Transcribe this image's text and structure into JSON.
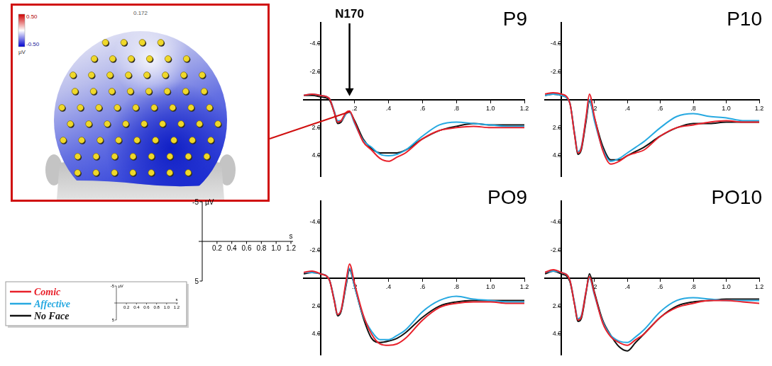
{
  "chart_data": [
    {
      "type": "line",
      "title": "P9",
      "x": [
        -0.1,
        -0.05,
        0,
        0.05,
        0.08,
        0.1,
        0.12,
        0.15,
        0.17,
        0.2,
        0.25,
        0.3,
        0.35,
        0.4,
        0.45,
        0.5,
        0.6,
        0.7,
        0.8,
        0.9,
        1.0,
        1.1,
        1.2
      ],
      "series": [
        {
          "name": "Comic",
          "color": "#e8202a",
          "values": [
            -0.3,
            -0.4,
            -0.3,
            -0.1,
            0.9,
            1.6,
            1.5,
            0.9,
            0.8,
            1.6,
            3.0,
            3.6,
            4.2,
            4.4,
            4.1,
            3.8,
            2.8,
            2.2,
            2.0,
            1.9,
            2.0,
            2.0,
            2.0
          ]
        },
        {
          "name": "Affective",
          "color": "#27a9e1",
          "values": [
            -0.3,
            -0.4,
            -0.3,
            -0.1,
            0.8,
            1.5,
            1.5,
            1.0,
            0.9,
            1.7,
            2.9,
            3.4,
            3.9,
            4.0,
            3.9,
            3.6,
            2.6,
            1.8,
            1.6,
            1.7,
            1.8,
            1.9,
            1.9
          ]
        },
        {
          "name": "No Face",
          "color": "#111111",
          "values": [
            -0.3,
            -0.3,
            -0.2,
            0.0,
            0.9,
            1.7,
            1.6,
            1.0,
            0.9,
            1.5,
            2.8,
            3.5,
            3.8,
            3.8,
            3.8,
            3.6,
            2.8,
            2.2,
            1.9,
            1.7,
            1.8,
            1.8,
            1.8
          ]
        }
      ],
      "xlim": [
        -0.1,
        1.2
      ],
      "xticks": [
        {
          "value": 0.2,
          "label": ".2"
        },
        {
          "value": 0.4,
          "label": ".4"
        },
        {
          "value": 0.6,
          "label": ".6"
        },
        {
          "value": 0.8,
          "label": ".8"
        },
        {
          "value": 1,
          "label": "1.0"
        },
        1.2
      ],
      "ylim": [
        5.5,
        -5.5
      ],
      "yticks": [
        {
          "value": -4,
          "label": "-4.0"
        },
        {
          "value": -2,
          "label": "-2.0"
        },
        {
          "value": 2,
          "label": "2.0"
        },
        {
          "value": 4,
          "label": "4.0"
        }
      ],
      "grid": false,
      "legend": "lower left",
      "annotations": [
        {
          "text": "N170",
          "x": 0.17
        }
      ]
    },
    {
      "type": "line",
      "title": "P10",
      "x": [
        -0.1,
        -0.05,
        0,
        0.05,
        0.08,
        0.1,
        0.12,
        0.15,
        0.17,
        0.2,
        0.25,
        0.3,
        0.35,
        0.4,
        0.45,
        0.5,
        0.6,
        0.7,
        0.8,
        0.9,
        1.0,
        1.1,
        1.2
      ],
      "series": [
        {
          "name": "Comic",
          "color": "#e8202a",
          "values": [
            -0.4,
            -0.5,
            -0.4,
            0.2,
            2.5,
            3.8,
            3.5,
            1.2,
            -0.4,
            1.2,
            3.6,
            4.6,
            4.4,
            4.0,
            3.8,
            3.6,
            2.6,
            2.0,
            1.8,
            1.6,
            1.5,
            1.6,
            1.6
          ]
        },
        {
          "name": "Affective",
          "color": "#27a9e1",
          "values": [
            -0.3,
            -0.4,
            -0.3,
            0.2,
            2.4,
            3.7,
            3.4,
            1.3,
            0.0,
            1.5,
            3.5,
            4.4,
            4.2,
            3.8,
            3.4,
            3.0,
            2.0,
            1.2,
            1.0,
            1.2,
            1.3,
            1.5,
            1.5
          ]
        },
        {
          "name": "No Face",
          "color": "#111111",
          "values": [
            -0.3,
            -0.4,
            -0.3,
            0.2,
            2.5,
            3.9,
            3.6,
            1.5,
            0.1,
            1.3,
            3.3,
            4.3,
            4.3,
            4.0,
            3.7,
            3.4,
            2.6,
            2.0,
            1.7,
            1.7,
            1.6,
            1.6,
            1.6
          ]
        }
      ],
      "xlim": [
        -0.1,
        1.2
      ],
      "xticks": [
        {
          "value": 0.2,
          "label": ".2"
        },
        {
          "value": 0.4,
          "label": ".4"
        },
        {
          "value": 0.6,
          "label": ".6"
        },
        {
          "value": 0.8,
          "label": ".8"
        },
        {
          "value": 1,
          "label": "1.0"
        },
        1.2
      ],
      "ylim": [
        5.5,
        -5.5
      ],
      "yticks": [
        {
          "value": -4,
          "label": "-4.0"
        },
        {
          "value": -2,
          "label": "-2.0"
        },
        {
          "value": 2,
          "label": "2.0"
        },
        {
          "value": 4,
          "label": "4.0"
        }
      ],
      "grid": false,
      "legend": "lower left"
    },
    {
      "type": "line",
      "title": "PO9",
      "x": [
        -0.1,
        -0.05,
        0,
        0.05,
        0.08,
        0.1,
        0.12,
        0.15,
        0.17,
        0.2,
        0.25,
        0.3,
        0.35,
        0.4,
        0.45,
        0.5,
        0.6,
        0.7,
        0.8,
        0.9,
        1.0,
        1.1,
        1.2
      ],
      "series": [
        {
          "name": "Comic",
          "color": "#e8202a",
          "values": [
            -0.4,
            -0.5,
            -0.3,
            0.1,
            1.6,
            2.6,
            2.3,
            0.2,
            -1.0,
            0.4,
            2.6,
            4.0,
            4.7,
            4.8,
            4.7,
            4.3,
            3.0,
            2.1,
            1.8,
            1.7,
            1.7,
            1.8,
            1.8
          ]
        },
        {
          "name": "Affective",
          "color": "#27a9e1",
          "values": [
            -0.4,
            -0.4,
            -0.3,
            0.1,
            1.5,
            2.6,
            2.3,
            0.4,
            -0.7,
            0.6,
            2.7,
            3.8,
            4.4,
            4.4,
            4.1,
            3.7,
            2.4,
            1.6,
            1.3,
            1.5,
            1.6,
            1.7,
            1.7
          ]
        },
        {
          "name": "No Face",
          "color": "#111111",
          "values": [
            -0.3,
            -0.4,
            -0.3,
            0.1,
            1.6,
            2.7,
            2.4,
            0.5,
            -0.6,
            0.6,
            2.8,
            4.3,
            4.6,
            4.5,
            4.3,
            3.9,
            2.8,
            2.0,
            1.7,
            1.6,
            1.6,
            1.6,
            1.6
          ]
        }
      ],
      "xlim": [
        -0.1,
        1.2
      ],
      "xticks": [
        {
          "value": 0.2,
          "label": ".2"
        },
        {
          "value": 0.4,
          "label": ".4"
        },
        {
          "value": 0.6,
          "label": ".6"
        },
        {
          "value": 0.8,
          "label": ".8"
        },
        {
          "value": 1,
          "label": "1.0"
        },
        1.2
      ],
      "ylim": [
        5.5,
        -5.5
      ],
      "yticks": [
        {
          "value": -4,
          "label": "-4.0"
        },
        {
          "value": -2,
          "label": "-2.0"
        },
        {
          "value": 2,
          "label": "2.0"
        },
        {
          "value": 4,
          "label": "4.0"
        }
      ],
      "grid": false,
      "legend": "lower left"
    },
    {
      "type": "line",
      "title": "PO10",
      "x": [
        -0.1,
        -0.05,
        0,
        0.05,
        0.08,
        0.1,
        0.12,
        0.15,
        0.17,
        0.2,
        0.25,
        0.3,
        0.35,
        0.4,
        0.45,
        0.5,
        0.6,
        0.7,
        0.8,
        0.9,
        1.0,
        1.1,
        1.2
      ],
      "series": [
        {
          "name": "Comic",
          "color": "#e8202a",
          "values": [
            -0.4,
            -0.6,
            -0.4,
            0.1,
            1.9,
            3.0,
            2.8,
            0.9,
            -0.1,
            1.1,
            3.2,
            4.2,
            4.6,
            4.8,
            4.4,
            4.0,
            2.8,
            2.1,
            1.8,
            1.6,
            1.6,
            1.7,
            1.8
          ]
        },
        {
          "name": "Affective",
          "color": "#27a9e1",
          "values": [
            -0.4,
            -0.5,
            -0.4,
            0.1,
            1.8,
            2.9,
            2.7,
            0.9,
            0.0,
            1.2,
            3.1,
            4.1,
            4.5,
            4.6,
            4.2,
            3.7,
            2.4,
            1.6,
            1.4,
            1.5,
            1.6,
            1.6,
            1.6
          ]
        },
        {
          "name": "No Face",
          "color": "#111111",
          "values": [
            -0.3,
            -0.5,
            -0.3,
            0.2,
            1.9,
            3.1,
            2.9,
            1.0,
            -0.3,
            1.0,
            3.0,
            4.1,
            4.9,
            5.2,
            4.6,
            4.0,
            2.8,
            2.0,
            1.7,
            1.6,
            1.5,
            1.5,
            1.5
          ]
        }
      ],
      "xlim": [
        -0.1,
        1.2
      ],
      "xticks": [
        {
          "value": 0.2,
          "label": ".2"
        },
        {
          "value": 0.4,
          "label": ".4"
        },
        {
          "value": 0.6,
          "label": ".6"
        },
        {
          "value": 0.8,
          "label": ".8"
        },
        {
          "value": 1,
          "label": "1.0"
        },
        1.2
      ],
      "ylim": [
        5.5,
        -5.5
      ],
      "yticks": [
        {
          "value": -4,
          "label": "-4.0"
        },
        {
          "value": -2,
          "label": "-2.0"
        },
        {
          "value": 2,
          "label": "2.0"
        },
        {
          "value": 4,
          "label": "4.0"
        }
      ],
      "grid": false,
      "legend": "lower left"
    }
  ],
  "topography": {
    "time": 0.172,
    "colorbar": {
      "range": [
        -0.5,
        0.5
      ],
      "ticks": [
        {
          "value": 0.5,
          "label": "0.50"
        },
        {
          "value": -0.5,
          "label": "-0.50"
        }
      ],
      "unit": "µV"
    }
  },
  "scale_bar": {
    "x_unit": "s",
    "y_unit": "µV",
    "xlim": [
      0,
      1.2
    ],
    "ylim": [
      5,
      -5
    ],
    "xticks": [
      0.2,
      0.4,
      0.6,
      0.8,
      {
        "value": 1,
        "label": "1.0"
      },
      1.2
    ],
    "yticks": [
      -5,
      5
    ]
  }
}
